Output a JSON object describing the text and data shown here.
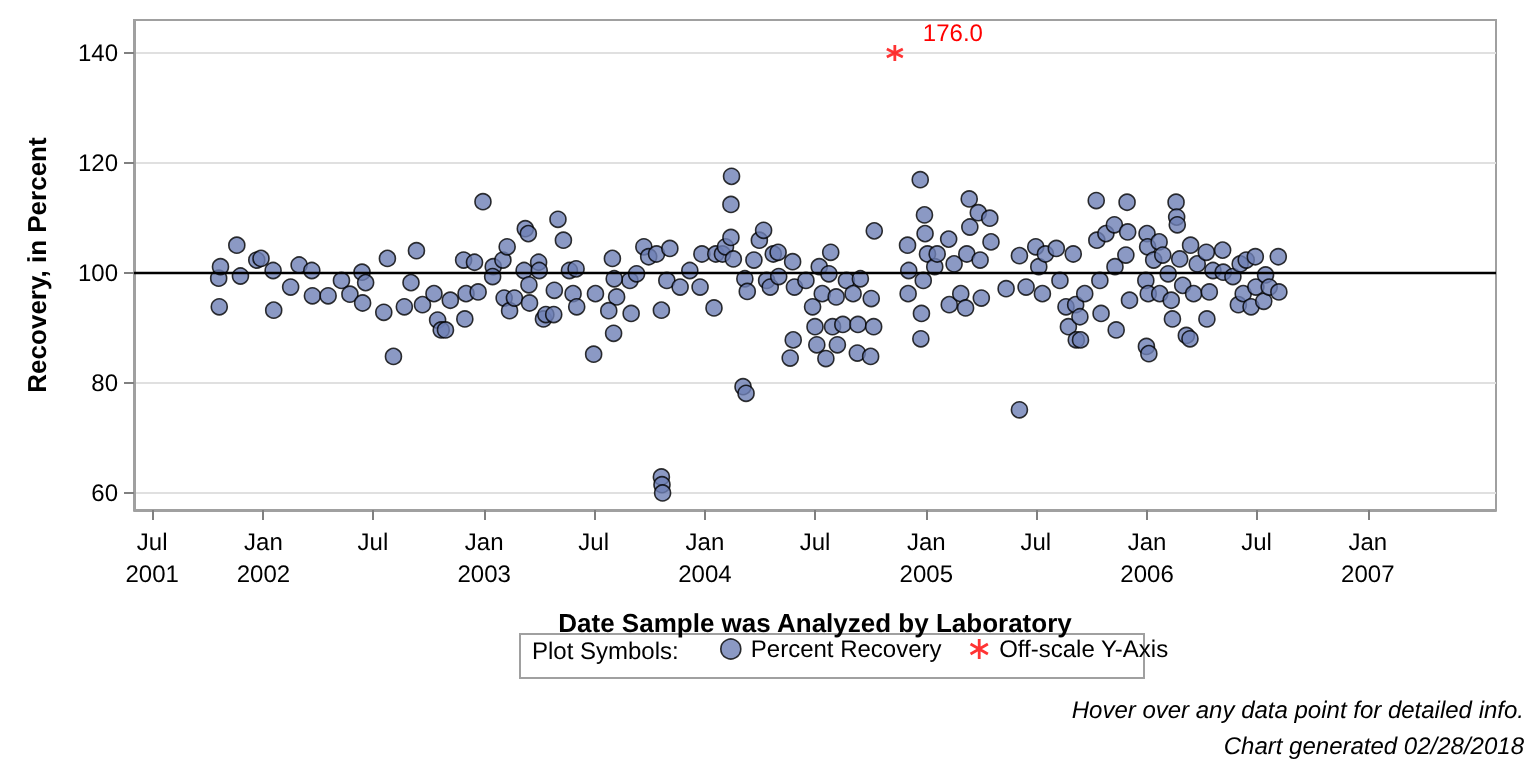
{
  "chart_data": {
    "type": "scatter",
    "xlabel": "Date Sample was Analyzed by Laboratory",
    "ylabel": "Recovery, in Percent",
    "legend_title": "Plot Symbols:",
    "legend": "bottom",
    "grid": "y",
    "xlim": [
      "2001-06-01",
      "2007-08-01"
    ],
    "xticks": [
      {
        "value": "2001-07-01",
        "label": "Jul\n2001"
      },
      {
        "value": "2002-01-01",
        "label": "Jan\n2002"
      },
      {
        "value": "2002-07-01",
        "label": "Jul"
      },
      {
        "value": "2003-01-01",
        "label": "Jan\n2003"
      },
      {
        "value": "2003-07-01",
        "label": "Jul"
      },
      {
        "value": "2004-01-01",
        "label": "Jan\n2004"
      },
      {
        "value": "2004-07-01",
        "label": "Jul"
      },
      {
        "value": "2005-01-01",
        "label": "Jan\n2005"
      },
      {
        "value": "2005-07-01",
        "label": "Jul"
      },
      {
        "value": "2006-01-01",
        "label": "Jan\n2006"
      },
      {
        "value": "2006-07-01",
        "label": "Jul"
      },
      {
        "value": "2007-01-01",
        "label": "Jan\n2007"
      }
    ],
    "ylim": [
      57,
      146
    ],
    "yticks": [
      60,
      80,
      100,
      120,
      140
    ],
    "ref_lines": [
      {
        "axis": "y",
        "value": 100,
        "color": "#000000"
      }
    ],
    "annotations": [
      {
        "text": "176.0",
        "x": "2004-11-10",
        "y": 140
      },
      "Hover over any data point for detailed info.",
      "Chart generated 02/28/2018"
    ],
    "series": [
      {
        "name": "Percent Recovery",
        "color": "#6e7fb5",
        "marker": "circle",
        "x": [
          "2001-10-19",
          "2001-10-20",
          "2001-10-22",
          "2001-11-18",
          "2001-11-24",
          "2001-12-21",
          "2001-12-28",
          "2002-01-17",
          "2002-01-18",
          "2002-02-15",
          "2002-03-01",
          "2002-03-22",
          "2002-03-23",
          "2002-04-18",
          "2002-05-10",
          "2002-05-24",
          "2002-06-13",
          "2002-06-19",
          "2002-06-14",
          "2002-07-19",
          "2002-07-25",
          "2002-08-04",
          "2002-08-22",
          "2002-09-11",
          "2002-09-02",
          "2002-09-21",
          "2002-10-10",
          "2002-10-16",
          "2002-10-22",
          "2002-10-29",
          "2002-11-06",
          "2002-11-28",
          "2002-11-30",
          "2002-12-02",
          "2002-12-16",
          "2002-12-22",
          "2002-12-30",
          "2003-01-16",
          "2003-01-15",
          "2003-02-01",
          "2003-02-08",
          "2003-02-03",
          "2003-02-12",
          "2003-02-20",
          "2003-03-10",
          "2003-03-15",
          "2003-03-08",
          "2003-03-16",
          "2003-03-17",
          "2003-04-01",
          "2003-04-02",
          "2003-04-09",
          "2003-04-13",
          "2003-04-26",
          "2003-04-27",
          "2003-05-03",
          "2003-05-12",
          "2003-05-22",
          "2003-06-02",
          "2003-05-28",
          "2003-06-03",
          "2003-07-01",
          "2003-07-04",
          "2003-08-01",
          "2003-08-08",
          "2003-07-26",
          "2003-08-03",
          "2003-09-01",
          "2003-08-30",
          "2003-08-04",
          "2003-09-10",
          "2003-09-22",
          "2003-09-30",
          "2003-10-13",
          "2003-10-21",
          "2003-10-21",
          "2003-10-22",
          "2003-10-23",
          "2003-11-04",
          "2003-10-30",
          "2003-11-21",
          "2003-12-07",
          "2003-12-24",
          "2003-12-27",
          "2004-01-16",
          "2004-01-19",
          "2004-01-30",
          "2004-02-04",
          "2004-02-14",
          "2004-02-13",
          "2004-02-13",
          "2004-02-17",
          "2004-03-04",
          "2004-03-09",
          "2004-03-07",
          "2004-03-11",
          "2004-03-22",
          "2004-03-31",
          "2004-04-07",
          "2004-04-12",
          "2004-04-18",
          "2004-04-23",
          "2004-05-01",
          "2004-05-02",
          "2004-05-25",
          "2004-05-28",
          "2004-05-21",
          "2004-05-26",
          "2004-06-16",
          "2004-06-27",
          "2004-07-01",
          "2004-07-04",
          "2004-07-08",
          "2004-07-13",
          "2004-07-19",
          "2004-07-27",
          "2004-07-24",
          "2004-07-30",
          "2004-08-07",
          "2004-08-05",
          "2004-08-16",
          "2004-08-22",
          "2004-09-02",
          "2004-09-09",
          "2004-09-10",
          "2004-09-14",
          "2004-10-01",
          "2004-10-02",
          "2004-10-06",
          "2004-10-07",
          "2004-12-01",
          "2004-12-02",
          "2004-12-03",
          "2004-12-22",
          "2004-12-24",
          "2004-12-23",
          "2004-12-29",
          "2004-12-30",
          "2005-01-03",
          "2004-12-27",
          "2005-01-15",
          "2005-01-19",
          "2005-02-07",
          "2005-02-08",
          "2005-02-16",
          "2005-02-27",
          "2005-03-07",
          "2005-03-09",
          "2005-03-13",
          "2005-03-14",
          "2005-03-28",
          "2005-03-31",
          "2005-04-02",
          "2005-04-16",
          "2005-04-18",
          "2005-05-13",
          "2005-06-04",
          "2005-06-04",
          "2005-06-15",
          "2005-07-01",
          "2005-07-06",
          "2005-07-12",
          "2005-07-17",
          "2005-08-04",
          "2005-08-10",
          "2005-08-20",
          "2005-08-24",
          "2005-09-01",
          "2005-09-06",
          "2005-09-05",
          "2005-09-12",
          "2005-09-13",
          "2005-09-20",
          "2005-10-09",
          "2005-10-10",
          "2005-10-15",
          "2005-10-17",
          "2005-10-25",
          "2005-11-08",
          "2005-11-11",
          "2005-11-09",
          "2005-11-27",
          "2005-11-29",
          "2005-11-30",
          "2005-12-03",
          "2006-01-01",
          "2006-01-02",
          "2005-12-30",
          "2006-01-03",
          "2005-12-31",
          "2006-01-04",
          "2006-01-12",
          "2006-01-21",
          "2006-01-27",
          "2006-01-22",
          "2006-02-05",
          "2006-02-10",
          "2006-02-18",
          "2006-02-19",
          "2006-02-20",
          "2006-02-12",
          "2006-02-24",
          "2006-03-01",
          "2006-03-07",
          "2006-03-13",
          "2006-03-14",
          "2006-03-19",
          "2006-03-25",
          "2006-04-09",
          "2006-04-10",
          "2006-04-14",
          "2006-04-20",
          "2006-05-06",
          "2006-05-07",
          "2006-05-23",
          "2006-06-01",
          "2006-06-04",
          "2006-06-09",
          "2006-06-14",
          "2006-06-22",
          "2006-06-29",
          "2006-06-30",
          "2006-07-16",
          "2006-07-13",
          "2006-07-22",
          "2006-08-06",
          "2006-08-07"
        ],
        "values": [
          99.1,
          93.9,
          101.2,
          105.1,
          99.5,
          102.4,
          102.7,
          100.5,
          93.3,
          97.5,
          101.5,
          100.5,
          95.9,
          95.9,
          98.7,
          96.2,
          100.2,
          98.3,
          94.6,
          92.9,
          102.7,
          84.9,
          93.9,
          104.1,
          98.3,
          94.3,
          96.3,
          91.5,
          89.7,
          89.7,
          95.1,
          102.4,
          91.7,
          96.3,
          102.0,
          96.6,
          113.0,
          101.2,
          99.4,
          102.4,
          104.8,
          95.5,
          93.2,
          95.5,
          108.1,
          107.2,
          100.5,
          97.9,
          94.6,
          102.0,
          100.5,
          91.7,
          92.5,
          92.5,
          96.9,
          109.8,
          106.0,
          100.5,
          100.8,
          96.3,
          93.9,
          85.3,
          96.3,
          102.7,
          95.7,
          93.2,
          89.1,
          92.7,
          98.7,
          99.0,
          99.9,
          104.8,
          103.0,
          103.5,
          93.3,
          63.0,
          61.6,
          60.1,
          104.5,
          98.7,
          97.5,
          100.5,
          97.5,
          103.5,
          93.7,
          103.5,
          103.5,
          104.8,
          117.6,
          112.5,
          106.5,
          102.6,
          79.4,
          78.2,
          99.0,
          96.7,
          102.4,
          106.0,
          107.8,
          98.7,
          97.5,
          103.5,
          103.8,
          99.4,
          102.1,
          97.5,
          84.6,
          87.9,
          98.7,
          93.9,
          90.3,
          87.0,
          101.2,
          96.3,
          84.5,
          103.8,
          99.9,
          90.3,
          87.0,
          95.7,
          90.7,
          98.7,
          96.3,
          85.5,
          90.7,
          99.0,
          84.9,
          95.4,
          90.3,
          107.7,
          105.1,
          96.3,
          100.5,
          117.0,
          92.7,
          88.1,
          110.6,
          107.2,
          103.5,
          98.7,
          101.2,
          103.5,
          106.2,
          94.3,
          101.7,
          96.3,
          93.7,
          103.5,
          113.5,
          108.4,
          111.0,
          102.4,
          95.5,
          110.0,
          105.7,
          97.2,
          103.2,
          75.2,
          97.5,
          104.8,
          101.2,
          96.3,
          103.5,
          104.5,
          98.7,
          93.9,
          90.3,
          103.5,
          87.9,
          94.3,
          92.1,
          87.9,
          96.3,
          113.2,
          106.0,
          98.7,
          92.7,
          107.2,
          108.8,
          89.7,
          101.2,
          103.3,
          112.9,
          107.5,
          95.1,
          107.2,
          104.8,
          98.7,
          96.3,
          86.7,
          85.4,
          102.4,
          105.7,
          103.3,
          96.3,
          99.9,
          95.1,
          112.9,
          110.2,
          108.8,
          91.7,
          102.6,
          97.8,
          88.7,
          88.1,
          105.1,
          96.3,
          101.7,
          103.8,
          91.7,
          96.6,
          100.5,
          104.2,
          100.2,
          99.4,
          94.3,
          101.7,
          96.3,
          102.4,
          93.9,
          103.0,
          97.5,
          99.7,
          94.9,
          97.5,
          103.0,
          96.6
        ]
      },
      {
        "name": "Off-scale Y-Axis",
        "color": "#ff0000",
        "marker": "cross",
        "x": [
          "2004-11-10"
        ],
        "values": [
          140
        ]
      }
    ]
  }
}
